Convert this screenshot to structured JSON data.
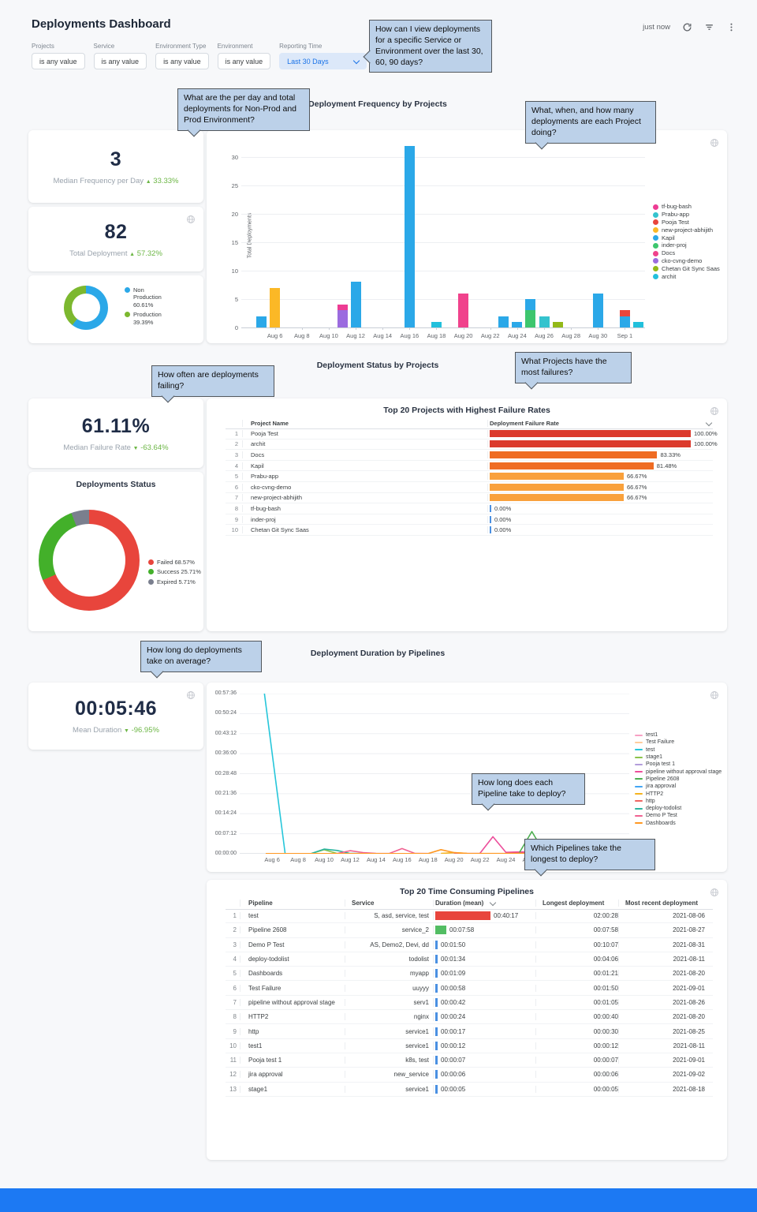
{
  "header": {
    "title": "Deployments Dashboard",
    "updated": "just now"
  },
  "filters": [
    {
      "label": "Projects",
      "value": "is any value",
      "highlight": false
    },
    {
      "label": "Service",
      "value": "is any value",
      "highlight": false
    },
    {
      "label": "Environment Type",
      "value": "is any value",
      "highlight": false
    },
    {
      "label": "Environment",
      "value": "is any value",
      "highlight": false
    },
    {
      "label": "Reporting Time",
      "value": "Last 30 Days",
      "highlight": true
    }
  ],
  "callouts": {
    "reporting": "How can I view deployments for a specific Service or Environment over the last 30, 60, 90 days?",
    "perday": "What are the per day and total deployments for Non-Prod and Prod Environment?",
    "projects": "What, when, and how many deployments are each Project doing?",
    "failing": "How often are deployments failing?",
    "failures": "What Projects have the most failures?",
    "average": "How long do deployments take on average?",
    "pipeline_time": "How long does each Pipeline take to deploy?",
    "longest": "Which Pipelines take the longest to deploy?"
  },
  "sections": {
    "s1": "Deployment Frequency by Projects",
    "s2": "Deployment Status by Projects",
    "s3": "Deployment Duration by Pipelines"
  },
  "kpis": {
    "median_freq": {
      "value": "3",
      "label": "Median Frequency per Day",
      "arrow": "▲",
      "delta": "33.33%"
    },
    "total_deploy": {
      "value": "82",
      "label": "Total Deployment",
      "arrow": "▲",
      "delta": "57.32%"
    },
    "median_failure": {
      "value": "61.11%",
      "label": "Median Failure Rate",
      "arrow": "▼",
      "delta": "-63.64%"
    },
    "mean_duration": {
      "value": "00:05:46",
      "label": "Mean Duration",
      "arrow": "▼",
      "delta": "-96.95%"
    }
  },
  "env_donut": {
    "slices": [
      {
        "label": "Non Production",
        "pct": 60.61,
        "display": "60.61%",
        "color": "#2BA8E8"
      },
      {
        "label": "Production",
        "pct": 39.39,
        "display": "39.39%",
        "color": "#7CB82F"
      }
    ]
  },
  "status_donut": {
    "title": "Deployments Status",
    "slices": [
      {
        "label": "Failed",
        "pct": 68.57,
        "display": "68.57%",
        "color": "#E8453C"
      },
      {
        "label": "Success",
        "pct": 25.71,
        "display": "25.71%",
        "color": "#43B02A"
      },
      {
        "label": "Expired",
        "pct": 5.71,
        "display": "5.71%",
        "color": "#7A7F8E"
      }
    ]
  },
  "chart_data": [
    {
      "type": "bar",
      "title": "Deployment Frequency by Projects",
      "ylabel": "Total Deployments",
      "y_ticks": [
        0,
        5,
        10,
        15,
        20,
        25,
        30
      ],
      "ylim": [
        0,
        33
      ],
      "x_ticks": [
        "Aug 6",
        "Aug 8",
        "Aug 10",
        "Aug 12",
        "Aug 14",
        "Aug 16",
        "Aug 18",
        "Aug 20",
        "Aug 22",
        "Aug 24",
        "Aug 26",
        "Aug 28",
        "Aug 30",
        "Sep 1"
      ],
      "tick_day_indices": [
        2,
        4,
        6,
        8,
        10,
        12,
        14,
        16,
        18,
        20,
        22,
        24,
        26,
        28
      ],
      "bars": [
        {
          "day": 1,
          "segments": [
            {
              "series": "Kapil",
              "value": 2
            }
          ]
        },
        {
          "day": 2,
          "segments": [
            {
              "series": "new-project-abhijith",
              "value": 7
            }
          ]
        },
        {
          "day": 7,
          "segments": [
            {
              "series": "cko-cvng-demo",
              "value": 3
            },
            {
              "series": "tf-bug-bash",
              "value": 1
            }
          ]
        },
        {
          "day": 8,
          "segments": [
            {
              "series": "Kapil",
              "value": 8
            }
          ]
        },
        {
          "day": 12,
          "segments": [
            {
              "series": "Kapil",
              "value": 32
            }
          ]
        },
        {
          "day": 14,
          "segments": [
            {
              "series": "archit",
              "value": 1
            }
          ]
        },
        {
          "day": 16,
          "segments": [
            {
              "series": "Docs",
              "value": 6
            }
          ]
        },
        {
          "day": 19,
          "segments": [
            {
              "series": "Kapil",
              "value": 2
            }
          ]
        },
        {
          "day": 20,
          "segments": [
            {
              "series": "Kapil",
              "value": 1
            }
          ]
        },
        {
          "day": 21,
          "segments": [
            {
              "series": "inder-proj",
              "value": 3
            },
            {
              "series": "Kapil",
              "value": 2
            }
          ]
        },
        {
          "day": 22,
          "segments": [
            {
              "series": "Prabu-app",
              "value": 2
            }
          ]
        },
        {
          "day": 23,
          "segments": [
            {
              "series": "Chetan Git Sync Saas",
              "value": 1
            }
          ]
        },
        {
          "day": 26,
          "segments": [
            {
              "series": "Kapil",
              "value": 6
            }
          ]
        },
        {
          "day": 28,
          "segments": [
            {
              "series": "Kapil",
              "value": 2
            },
            {
              "series": "Pooja Test",
              "value": 1
            }
          ]
        },
        {
          "day": 29,
          "segments": [
            {
              "series": "archit",
              "value": 1
            }
          ]
        }
      ],
      "legend": [
        {
          "name": "tf-bug-bash",
          "color": "#ED3C93"
        },
        {
          "name": "Prabu-app",
          "color": "#35C3CE"
        },
        {
          "name": "Pooja Test",
          "color": "#E8453C"
        },
        {
          "name": "new-project-abhijith",
          "color": "#FBB826"
        },
        {
          "name": "Kapil",
          "color": "#2BA8E8"
        },
        {
          "name": "inder-proj",
          "color": "#3DC66E"
        },
        {
          "name": "Docs",
          "color": "#F0428C"
        },
        {
          "name": "cko-cvng-demo",
          "color": "#9B6BDF"
        },
        {
          "name": "Chetan Git Sync Saas",
          "color": "#93B918"
        },
        {
          "name": "archit",
          "color": "#22C0DC"
        }
      ]
    },
    {
      "type": "table",
      "title": "Top 20 Projects with Highest Failure Rates",
      "columns": [
        "Project Name",
        "Deployment Failure Rate"
      ],
      "rows": [
        {
          "rank": 1,
          "name": "Pooja Test",
          "rate": 100.0,
          "display": "100.00%",
          "color": "#DB3A2C"
        },
        {
          "rank": 2,
          "name": "archit",
          "rate": 100.0,
          "display": "100.00%",
          "color": "#DB3A2C"
        },
        {
          "rank": 3,
          "name": "Docs",
          "rate": 83.33,
          "display": "83.33%",
          "color": "#EF6C23"
        },
        {
          "rank": 4,
          "name": "Kapil",
          "rate": 81.48,
          "display": "81.48%",
          "color": "#EF6C23"
        },
        {
          "rank": 5,
          "name": "Prabu-app",
          "rate": 66.67,
          "display": "66.67%",
          "color": "#F9A13C"
        },
        {
          "rank": 6,
          "name": "cko-cvng-demo",
          "rate": 66.67,
          "display": "66.67%",
          "color": "#F9A13C"
        },
        {
          "rank": 7,
          "name": "new-project-abhijith",
          "rate": 66.67,
          "display": "66.67%",
          "color": "#F9A13C"
        },
        {
          "rank": 8,
          "name": "tf-bug-bash",
          "rate": 0,
          "display": "0.00%",
          "color": "#4A90E2"
        },
        {
          "rank": 9,
          "name": "inder-proj",
          "rate": 0,
          "display": "0.00%",
          "color": "#4A90E2"
        },
        {
          "rank": 10,
          "name": "Chetan Git Sync Saas",
          "rate": 0,
          "display": "0.00%",
          "color": "#4A90E2"
        }
      ]
    },
    {
      "type": "line",
      "title": "Deployment Duration by Pipelines",
      "y_ticks": [
        "00:00:00",
        "00:07:12",
        "00:14:24",
        "00:21:36",
        "00:28:48",
        "00:36:00",
        "00:43:12",
        "00:50:24",
        "00:57:36"
      ],
      "y_max_seconds": 3456,
      "x_ticks": [
        "Aug 6",
        "Aug 8",
        "Aug 10",
        "Aug 12",
        "Aug 14",
        "Aug 16",
        "Aug 18",
        "Aug 20",
        "Aug 22",
        "Aug 24",
        "Aug 26",
        "Aug 28",
        "Aug 30",
        "Sep 1"
      ],
      "tick_day_indices": [
        2,
        4,
        6,
        8,
        10,
        12,
        14,
        16,
        18,
        20,
        22,
        24,
        26,
        28
      ],
      "series": [
        {
          "name": "test1",
          "color": "#F8A1C4",
          "points": [
            [
              26,
              5
            ],
            [
              27,
              8
            ],
            [
              28,
              5
            ]
          ]
        },
        {
          "name": "Test Failure",
          "color": "#FFCC9C",
          "points": [
            [
              27,
              5
            ],
            [
              28,
              58
            ],
            [
              29,
              6
            ]
          ]
        },
        {
          "name": "test",
          "color": "#26C6DA",
          "points": [
            [
              1.15,
              4000
            ],
            [
              3,
              4
            ]
          ]
        },
        {
          "name": "stage1",
          "color": "#8BC34A",
          "points": [
            [
              5,
              4
            ],
            [
              6,
              86
            ],
            [
              7,
              6
            ]
          ]
        },
        {
          "name": "Pooja test 1",
          "color": "#B39DDB",
          "points": [
            [
              27,
              4
            ],
            [
              28,
              7
            ],
            [
              29,
              5
            ]
          ]
        },
        {
          "name": "pipeline without approval stage",
          "color": "#EC4E9B",
          "points": [
            [
              16,
              4
            ],
            [
              18,
              8
            ],
            [
              19,
              368
            ],
            [
              20,
              30
            ],
            [
              21,
              40
            ],
            [
              22,
              40
            ],
            [
              23,
              18
            ],
            [
              24,
              8
            ]
          ]
        },
        {
          "name": "Pipeline 2608",
          "color": "#4CAF50",
          "points": [
            [
              21,
              6
            ],
            [
              22,
              478
            ],
            [
              23,
              6
            ]
          ]
        },
        {
          "name": "jira approval",
          "color": "#42A5F5",
          "points": [
            [
              28,
              5
            ],
            [
              29,
              6
            ]
          ]
        },
        {
          "name": "HTTP2",
          "color": "#F5B31E",
          "points": [
            [
              15,
              6
            ],
            [
              16,
              24
            ],
            [
              17,
              6
            ]
          ]
        },
        {
          "name": "http",
          "color": "#EF6461",
          "points": [
            [
              20,
              6
            ],
            [
              21,
              17
            ],
            [
              22,
              8
            ],
            [
              23,
              6
            ]
          ]
        },
        {
          "name": "deploy-todolist",
          "color": "#2BB5A0",
          "points": [
            [
              5,
              5
            ],
            [
              6,
              100
            ],
            [
              7,
              72
            ],
            [
              8,
              7
            ],
            [
              9,
              5
            ]
          ]
        },
        {
          "name": "Demo P Test",
          "color": "#F06292",
          "points": [
            [
              7,
              5
            ],
            [
              8,
              66
            ],
            [
              9,
              26
            ],
            [
              10,
              7
            ],
            [
              11,
              5
            ],
            [
              12,
              112
            ],
            [
              13,
              7
            ],
            [
              14,
              5
            ]
          ]
        },
        {
          "name": "Dashboards",
          "color": "#FF9822",
          "points": [
            [
              1.5,
              4
            ],
            [
              14,
              4
            ],
            [
              15,
              88
            ],
            [
              16,
              26
            ],
            [
              17,
              6
            ],
            [
              29,
              5
            ]
          ]
        }
      ]
    },
    {
      "type": "table",
      "title": "Top 20 Time Consuming Pipelines",
      "columns": [
        "Pipeline",
        "Service",
        "Duration (mean)",
        "Longest deployment",
        "Most recent deployment"
      ],
      "rows": [
        {
          "rank": 1,
          "pipeline": "test",
          "service": "S, asd, service, test",
          "duration": "00:40:17",
          "duration_seconds": 2417,
          "bar_color": "#E8453C",
          "longest": "02:00:28",
          "recent": "2021-08-06"
        },
        {
          "rank": 2,
          "pipeline": "Pipeline 2608",
          "service": "service_2",
          "duration": "00:07:58",
          "duration_seconds": 478,
          "bar_color": "#52BD63",
          "longest": "00:07:58",
          "recent": "2021-08-27"
        },
        {
          "rank": 3,
          "pipeline": "Demo P Test",
          "service": "AS, Demo2, Devi, dd",
          "duration": "00:01:50",
          "duration_seconds": 110,
          "bar_color": "#4A90E2",
          "longest": "00:10:07",
          "recent": "2021-08-31"
        },
        {
          "rank": 4,
          "pipeline": "deploy-todolist",
          "service": "todolist",
          "duration": "00:01:34",
          "duration_seconds": 94,
          "bar_color": "#4A90E2",
          "longest": "00:04:06",
          "recent": "2021-08-11"
        },
        {
          "rank": 5,
          "pipeline": "Dashboards",
          "service": "myapp",
          "duration": "00:01:09",
          "duration_seconds": 69,
          "bar_color": "#4A90E2",
          "longest": "00:01:21",
          "recent": "2021-08-20"
        },
        {
          "rank": 6,
          "pipeline": "Test Failure",
          "service": "uuyyy",
          "duration": "00:00:58",
          "duration_seconds": 58,
          "bar_color": "#4A90E2",
          "longest": "00:01:50",
          "recent": "2021-09-01"
        },
        {
          "rank": 7,
          "pipeline": "pipeline without approval stage",
          "service": "serv1",
          "duration": "00:00:42",
          "duration_seconds": 42,
          "bar_color": "#4A90E2",
          "longest": "00:01:05",
          "recent": "2021-08-26"
        },
        {
          "rank": 8,
          "pipeline": "HTTP2",
          "service": "nginx",
          "duration": "00:00:24",
          "duration_seconds": 24,
          "bar_color": "#4A90E2",
          "longest": "00:00:40",
          "recent": "2021-08-20"
        },
        {
          "rank": 9,
          "pipeline": "http",
          "service": "service1",
          "duration": "00:00:17",
          "duration_seconds": 17,
          "bar_color": "#4A90E2",
          "longest": "00:00:30",
          "recent": "2021-08-25"
        },
        {
          "rank": 10,
          "pipeline": "test1",
          "service": "service1",
          "duration": "00:00:12",
          "duration_seconds": 12,
          "bar_color": "#4A90E2",
          "longest": "00:00:12",
          "recent": "2021-08-11"
        },
        {
          "rank": 11,
          "pipeline": "Pooja test 1",
          "service": "k8s, test",
          "duration": "00:00:07",
          "duration_seconds": 7,
          "bar_color": "#4A90E2",
          "longest": "00:00:07",
          "recent": "2021-09-01"
        },
        {
          "rank": 12,
          "pipeline": "jira approval",
          "service": "new_service",
          "duration": "00:00:06",
          "duration_seconds": 6,
          "bar_color": "#4A90E2",
          "longest": "00:00:06",
          "recent": "2021-09-02"
        },
        {
          "rank": 13,
          "pipeline": "stage1",
          "service": "service1",
          "duration": "00:00:05",
          "duration_seconds": 5,
          "bar_color": "#4A90E2",
          "longest": "00:00:05",
          "recent": "2021-08-18"
        }
      ]
    }
  ],
  "theme": {
    "accent_blue": "#1a73e8",
    "footer_bar": "#1C79F3",
    "delta_green": "#6CB645",
    "kpi_navy": "#1F2C46"
  }
}
